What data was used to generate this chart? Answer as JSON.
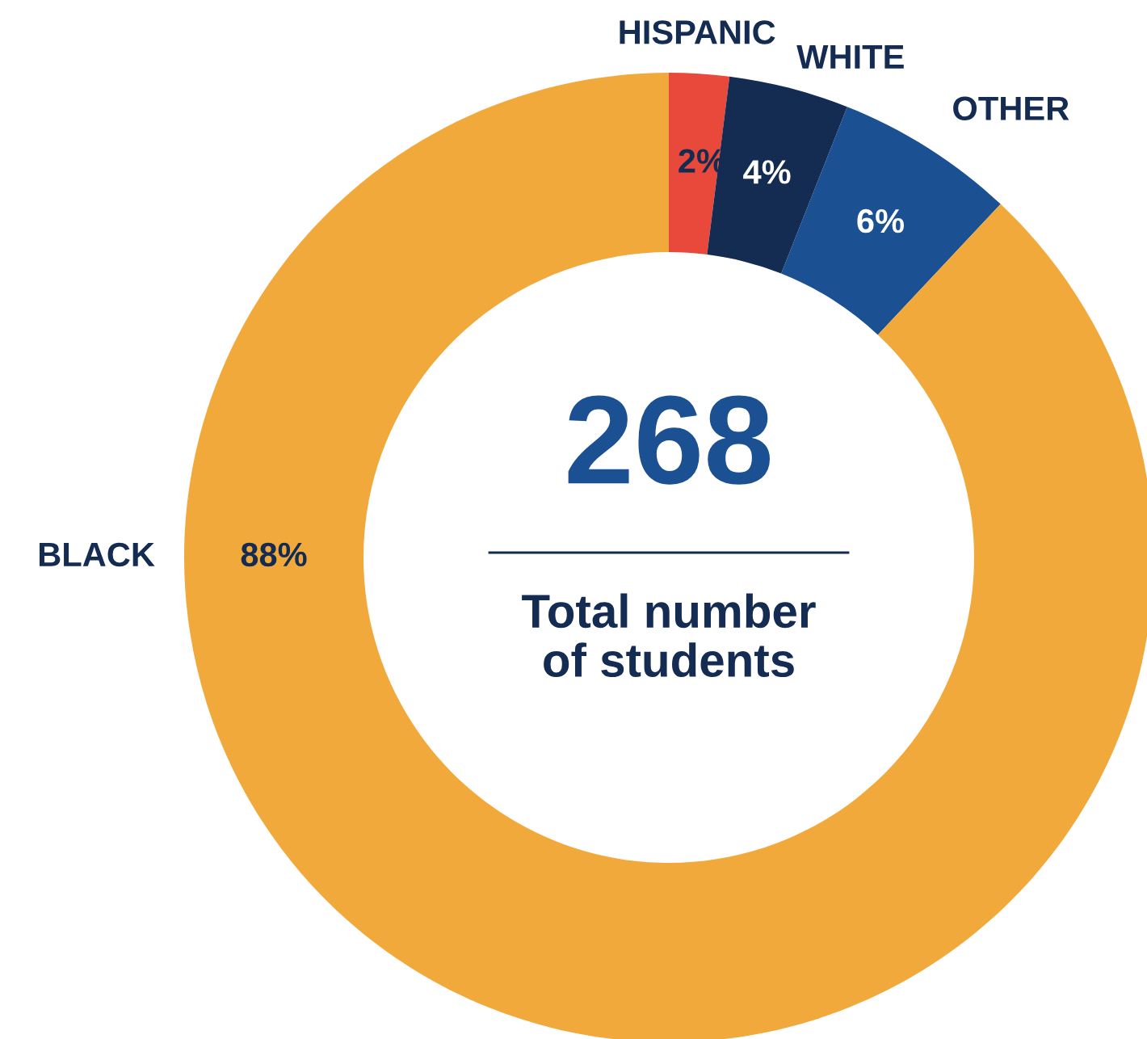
{
  "chart_data": {
    "type": "donut",
    "categories": [
      "HISPANIC",
      "WHITE",
      "OTHER",
      "BLACK"
    ],
    "values": [
      2,
      4,
      6,
      88
    ],
    "colors": [
      "#e8493a",
      "#142b52",
      "#1b5193",
      "#f2a93b"
    ],
    "value_labels": [
      "2%",
      "4%",
      "6%",
      "88%"
    ],
    "annotations": [
      "268",
      "Total number\nof students"
    ]
  }
}
